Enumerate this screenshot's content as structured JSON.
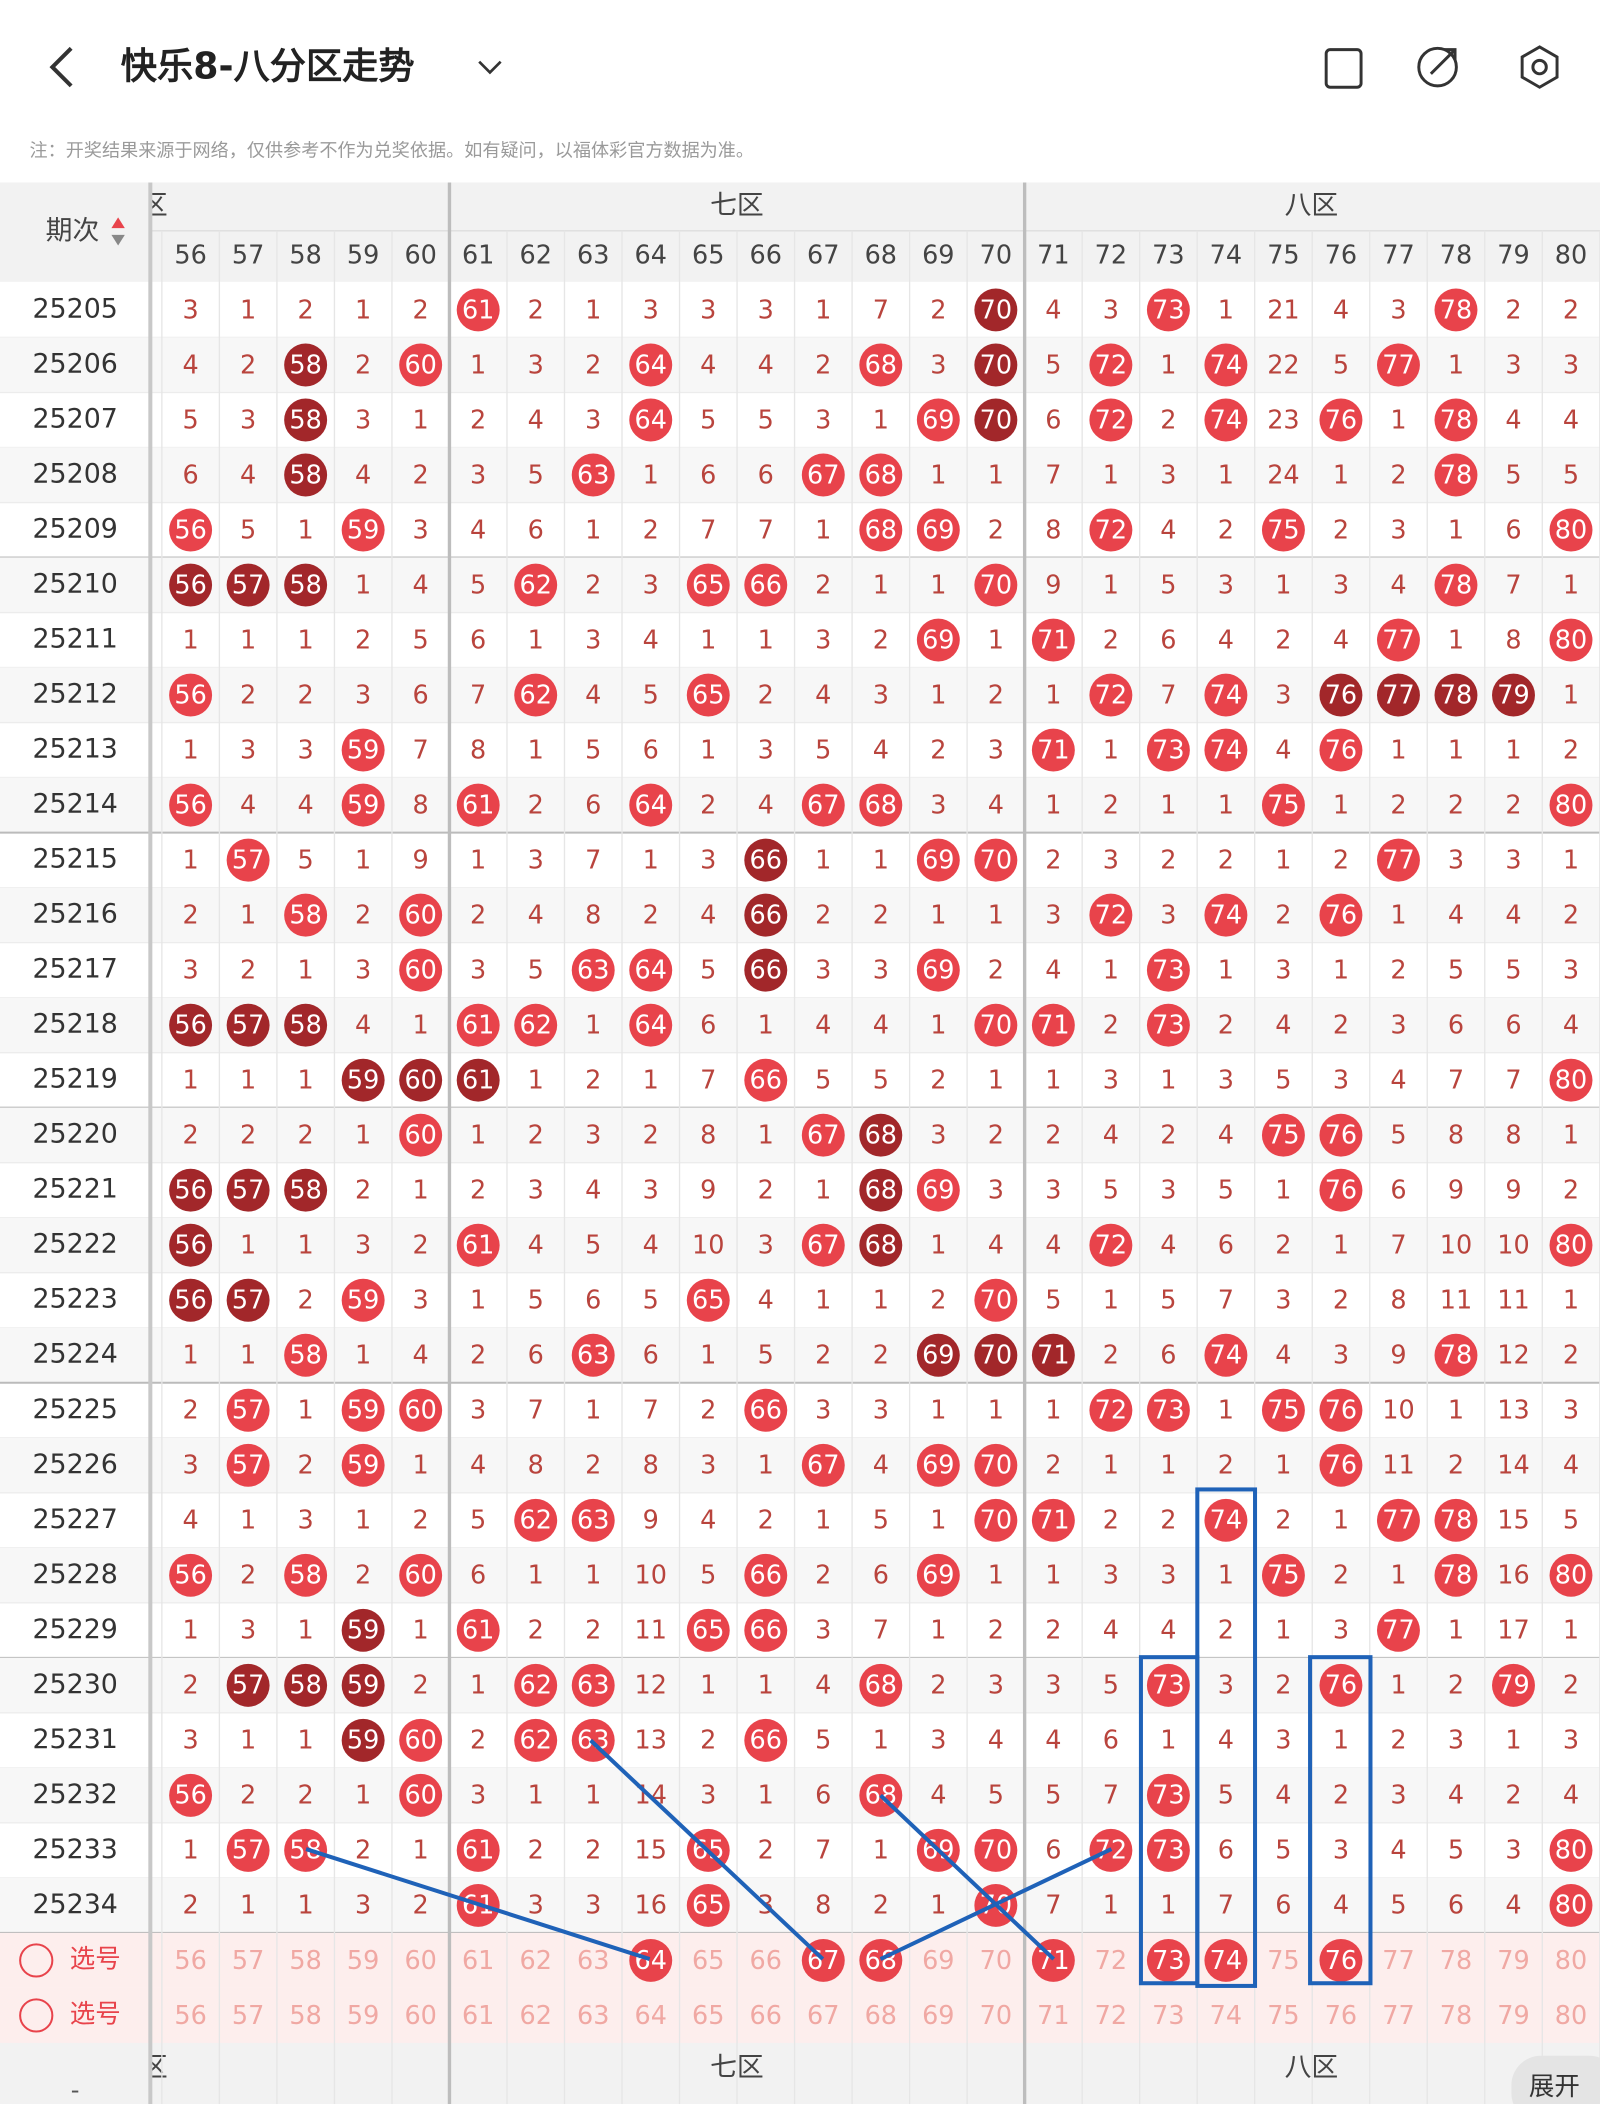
{
  "header": {
    "title": "快乐8-八分区走势"
  },
  "note": "注：开奖结果来源于网络，仅供参考不作为兑奖依据。如有疑问，以福体彩官方数据为准。",
  "zones": [
    {
      "label": "六区"
    },
    {
      "label": "七区"
    },
    {
      "label": "八区"
    }
  ],
  "table": {
    "issue_header": "期次",
    "columns": [
      56,
      57,
      58,
      59,
      60,
      61,
      62,
      63,
      64,
      65,
      66,
      67,
      68,
      69,
      70,
      71,
      72,
      73,
      74,
      75,
      76,
      77,
      78,
      79,
      80
    ],
    "rows": [
      {
        "issue": "25205",
        "cells": [
          3,
          1,
          2,
          1,
          2,
          61,
          2,
          1,
          3,
          3,
          3,
          1,
          7,
          2,
          70,
          4,
          3,
          73,
          1,
          21,
          4,
          3,
          78,
          2,
          2
        ],
        "dark": [
          70
        ]
      },
      {
        "issue": "25206",
        "cells": [
          4,
          2,
          58,
          2,
          60,
          1,
          3,
          2,
          64,
          4,
          4,
          2,
          68,
          3,
          70,
          5,
          72,
          1,
          74,
          22,
          5,
          77,
          1,
          3,
          3
        ],
        "dark": [
          58,
          70
        ]
      },
      {
        "issue": "25207",
        "cells": [
          5,
          3,
          58,
          3,
          1,
          2,
          4,
          3,
          64,
          5,
          5,
          3,
          1,
          69,
          70,
          6,
          72,
          2,
          74,
          23,
          76,
          1,
          78,
          4,
          4
        ],
        "dark": [
          58,
          70
        ]
      },
      {
        "issue": "25208",
        "cells": [
          6,
          4,
          58,
          4,
          2,
          3,
          5,
          63,
          1,
          6,
          6,
          67,
          68,
          1,
          1,
          7,
          1,
          3,
          1,
          24,
          1,
          2,
          78,
          5,
          5
        ],
        "dark": [
          58
        ]
      },
      {
        "issue": "25209",
        "cells": [
          56,
          5,
          1,
          59,
          3,
          4,
          6,
          1,
          2,
          7,
          7,
          1,
          68,
          69,
          2,
          8,
          72,
          4,
          2,
          75,
          2,
          3,
          1,
          6,
          80
        ],
        "dark": []
      },
      {
        "issue": "25210",
        "cells": [
          56,
          57,
          58,
          1,
          4,
          5,
          62,
          2,
          3,
          65,
          66,
          2,
          1,
          1,
          70,
          9,
          1,
          5,
          3,
          1,
          3,
          4,
          78,
          7,
          1
        ],
        "dark": [
          56,
          57,
          58
        ]
      },
      {
        "issue": "25211",
        "cells": [
          1,
          1,
          1,
          2,
          5,
          6,
          1,
          3,
          4,
          1,
          1,
          3,
          2,
          69,
          1,
          71,
          2,
          6,
          4,
          2,
          4,
          77,
          1,
          8,
          80
        ],
        "dark": []
      },
      {
        "issue": "25212",
        "cells": [
          56,
          2,
          2,
          3,
          6,
          7,
          62,
          4,
          5,
          65,
          2,
          4,
          3,
          1,
          2,
          1,
          72,
          7,
          74,
          3,
          76,
          77,
          78,
          79,
          1
        ],
        "dark": [
          76,
          77,
          78,
          79
        ]
      },
      {
        "issue": "25213",
        "cells": [
          1,
          3,
          3,
          59,
          7,
          8,
          1,
          5,
          6,
          1,
          3,
          5,
          4,
          2,
          3,
          71,
          1,
          73,
          74,
          4,
          76,
          1,
          1,
          1,
          2
        ],
        "dark": []
      },
      {
        "issue": "25214",
        "cells": [
          56,
          4,
          4,
          59,
          8,
          61,
          2,
          6,
          64,
          2,
          4,
          67,
          68,
          3,
          4,
          1,
          2,
          1,
          1,
          75,
          1,
          2,
          2,
          2,
          80
        ],
        "dark": []
      },
      {
        "issue": "25215",
        "cells": [
          1,
          57,
          5,
          1,
          9,
          1,
          3,
          7,
          1,
          3,
          66,
          1,
          1,
          69,
          70,
          2,
          3,
          2,
          2,
          1,
          2,
          77,
          3,
          3,
          1
        ],
        "dark": [
          66
        ]
      },
      {
        "issue": "25216",
        "cells": [
          2,
          1,
          58,
          2,
          60,
          2,
          4,
          8,
          2,
          4,
          66,
          2,
          2,
          1,
          1,
          3,
          72,
          3,
          74,
          2,
          76,
          1,
          4,
          4,
          2
        ],
        "dark": [
          66
        ]
      },
      {
        "issue": "25217",
        "cells": [
          3,
          2,
          1,
          3,
          60,
          3,
          5,
          63,
          64,
          5,
          66,
          3,
          3,
          69,
          2,
          4,
          1,
          73,
          1,
          3,
          1,
          2,
          5,
          5,
          3
        ],
        "dark": [
          66
        ]
      },
      {
        "issue": "25218",
        "cells": [
          56,
          57,
          58,
          4,
          1,
          61,
          62,
          1,
          64,
          6,
          1,
          4,
          4,
          1,
          70,
          71,
          2,
          73,
          2,
          4,
          2,
          3,
          6,
          6,
          4
        ],
        "dark": [
          56,
          57,
          58
        ]
      },
      {
        "issue": "25219",
        "cells": [
          1,
          1,
          1,
          59,
          60,
          61,
          1,
          2,
          1,
          7,
          66,
          5,
          5,
          2,
          1,
          1,
          3,
          1,
          3,
          5,
          3,
          4,
          7,
          7,
          80
        ],
        "dark": [
          59,
          60,
          61
        ]
      },
      {
        "issue": "25220",
        "cells": [
          2,
          2,
          2,
          1,
          60,
          1,
          2,
          3,
          2,
          8,
          1,
          67,
          68,
          3,
          2,
          2,
          4,
          2,
          4,
          75,
          76,
          5,
          8,
          8,
          1
        ],
        "dark": [
          68
        ]
      },
      {
        "issue": "25221",
        "cells": [
          56,
          57,
          58,
          2,
          1,
          2,
          3,
          4,
          3,
          9,
          2,
          1,
          68,
          69,
          3,
          3,
          5,
          3,
          5,
          1,
          76,
          6,
          9,
          9,
          2
        ],
        "dark": [
          56,
          57,
          58,
          68
        ]
      },
      {
        "issue": "25222",
        "cells": [
          56,
          1,
          1,
          3,
          2,
          61,
          4,
          5,
          4,
          10,
          3,
          67,
          68,
          1,
          4,
          4,
          72,
          4,
          6,
          2,
          1,
          7,
          10,
          10,
          80
        ],
        "dark": [
          56,
          68
        ]
      },
      {
        "issue": "25223",
        "cells": [
          56,
          57,
          2,
          59,
          3,
          1,
          5,
          6,
          5,
          65,
          4,
          1,
          1,
          2,
          70,
          5,
          1,
          5,
          7,
          3,
          2,
          8,
          11,
          11,
          1
        ],
        "dark": [
          56,
          57
        ]
      },
      {
        "issue": "25224",
        "cells": [
          1,
          1,
          58,
          1,
          4,
          2,
          6,
          63,
          6,
          1,
          5,
          2,
          2,
          69,
          70,
          71,
          2,
          6,
          74,
          4,
          3,
          9,
          78,
          12,
          2
        ],
        "dark": [
          69,
          70,
          71
        ]
      },
      {
        "issue": "25225",
        "cells": [
          2,
          57,
          1,
          59,
          60,
          3,
          7,
          1,
          7,
          2,
          66,
          3,
          3,
          1,
          1,
          1,
          72,
          73,
          1,
          75,
          76,
          10,
          1,
          13,
          3
        ],
        "dark": []
      },
      {
        "issue": "25226",
        "cells": [
          3,
          57,
          2,
          59,
          1,
          4,
          8,
          2,
          8,
          3,
          1,
          67,
          4,
          69,
          70,
          2,
          1,
          1,
          2,
          1,
          76,
          11,
          2,
          14,
          4
        ],
        "dark": []
      },
      {
        "issue": "25227",
        "cells": [
          4,
          1,
          3,
          1,
          2,
          5,
          62,
          63,
          9,
          4,
          2,
          1,
          5,
          1,
          70,
          71,
          2,
          2,
          74,
          2,
          1,
          77,
          78,
          15,
          5
        ],
        "dark": []
      },
      {
        "issue": "25228",
        "cells": [
          56,
          2,
          58,
          2,
          60,
          6,
          1,
          1,
          10,
          5,
          66,
          2,
          6,
          69,
          1,
          1,
          3,
          3,
          1,
          75,
          2,
          1,
          78,
          16,
          80
        ],
        "dark": []
      },
      {
        "issue": "25229",
        "cells": [
          1,
          3,
          1,
          59,
          1,
          61,
          2,
          2,
          11,
          65,
          66,
          3,
          7,
          1,
          2,
          2,
          4,
          4,
          2,
          1,
          3,
          77,
          1,
          17,
          1
        ],
        "dark": [
          59
        ]
      },
      {
        "issue": "25230",
        "cells": [
          2,
          57,
          58,
          59,
          2,
          1,
          62,
          63,
          12,
          1,
          1,
          4,
          68,
          2,
          3,
          3,
          5,
          73,
          3,
          2,
          76,
          1,
          2,
          79,
          2
        ],
        "dark": [
          57,
          58,
          59
        ]
      },
      {
        "issue": "25231",
        "cells": [
          3,
          1,
          1,
          59,
          60,
          2,
          62,
          63,
          13,
          2,
          66,
          5,
          1,
          3,
          4,
          4,
          6,
          1,
          4,
          3,
          1,
          2,
          3,
          1,
          3
        ],
        "dark": [
          59
        ]
      },
      {
        "issue": "25232",
        "cells": [
          56,
          2,
          2,
          1,
          60,
          3,
          1,
          1,
          14,
          3,
          1,
          6,
          68,
          4,
          5,
          5,
          7,
          73,
          5,
          4,
          2,
          3,
          4,
          2,
          4
        ],
        "dark": []
      },
      {
        "issue": "25233",
        "cells": [
          1,
          57,
          58,
          2,
          1,
          61,
          2,
          2,
          15,
          65,
          2,
          7,
          1,
          69,
          70,
          6,
          72,
          73,
          6,
          5,
          3,
          4,
          5,
          3,
          80
        ],
        "dark": []
      },
      {
        "issue": "25234",
        "cells": [
          2,
          1,
          1,
          3,
          2,
          61,
          3,
          3,
          16,
          65,
          3,
          8,
          2,
          1,
          70,
          7,
          1,
          1,
          7,
          6,
          4,
          5,
          6,
          4,
          80
        ],
        "dark": []
      }
    ]
  },
  "select_rows": [
    {
      "label": "选号",
      "numbers": [
        56,
        57,
        58,
        59,
        60,
        61,
        62,
        63,
        64,
        65,
        66,
        67,
        68,
        69,
        70,
        71,
        72,
        73,
        74,
        75,
        76,
        77,
        78,
        79,
        80
      ],
      "picked": [
        64,
        67,
        68,
        71,
        73,
        74,
        76
      ]
    },
    {
      "label": "选号",
      "numbers": [
        56,
        57,
        58,
        59,
        60,
        61,
        62,
        63,
        64,
        65,
        66,
        67,
        68,
        69,
        70,
        71,
        72,
        73,
        74,
        75,
        76,
        77,
        78,
        79,
        80
      ],
      "picked": []
    }
  ],
  "footer": {
    "left": "-",
    "expand": "展开"
  }
}
